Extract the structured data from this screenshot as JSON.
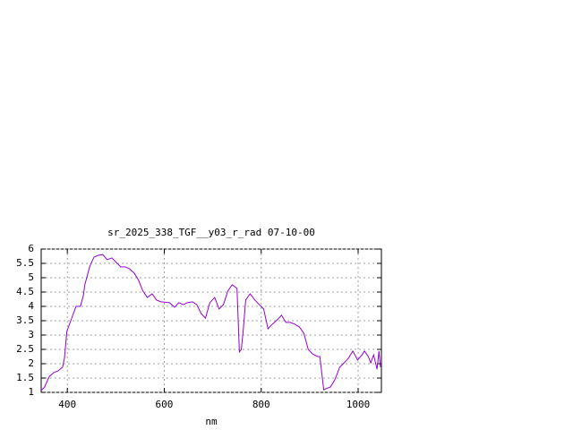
{
  "chart_data": {
    "type": "line",
    "title": "sr_2025_338_TGF__y03_r_rad 07-10-00",
    "x_label": "nm",
    "xlim": [
      346,
      1048
    ],
    "xticks": [
      400,
      600,
      800,
      1000
    ],
    "ylim": [
      1,
      6
    ],
    "yticks": [
      1,
      1.5,
      2,
      2.5,
      3,
      3.5,
      4,
      4.5,
      5,
      5.5,
      6
    ],
    "grid": true,
    "series": [
      {
        "color": "#9400d3",
        "x": [
          346,
          353,
          363,
          372,
          381,
          390,
          394,
          399,
          409,
          418,
          427,
          433,
          436,
          446,
          455,
          464,
          473,
          482,
          492,
          501,
          510,
          519,
          528,
          538,
          547,
          556,
          565,
          575,
          584,
          593,
          611,
          621,
          630,
          639,
          648,
          658,
          667,
          676,
          685,
          694,
          704,
          713,
          722,
          731,
          740,
          750,
          755,
          759,
          763,
          768,
          777,
          787,
          796,
          805,
          814,
          823,
          833,
          842,
          851,
          860,
          869,
          879,
          888,
          897,
          906,
          916,
          921,
          929,
          934,
          943,
          952,
          962,
          971,
          980,
          989,
          999,
          1008,
          1013,
          1021,
          1026,
          1032,
          1035,
          1039,
          1043,
          1046
        ],
        "values": [
          1.06,
          1.19,
          1.56,
          1.69,
          1.75,
          1.88,
          2.19,
          3.13,
          3.59,
          4.0,
          4.0,
          4.38,
          4.75,
          5.38,
          5.72,
          5.78,
          5.81,
          5.63,
          5.69,
          5.53,
          5.38,
          5.38,
          5.31,
          5.16,
          4.91,
          4.53,
          4.31,
          4.44,
          4.22,
          4.16,
          4.13,
          3.97,
          4.13,
          4.06,
          4.13,
          4.16,
          4.06,
          3.75,
          3.59,
          4.13,
          4.31,
          3.91,
          4.06,
          4.53,
          4.75,
          4.63,
          2.41,
          2.5,
          3.19,
          4.22,
          4.44,
          4.22,
          4.06,
          3.91,
          3.22,
          3.38,
          3.53,
          3.69,
          3.44,
          3.44,
          3.38,
          3.28,
          3.06,
          2.5,
          2.34,
          2.25,
          2.25,
          1.09,
          1.13,
          1.19,
          1.44,
          1.88,
          2.03,
          2.19,
          2.44,
          2.13,
          2.31,
          2.44,
          2.25,
          2.03,
          2.31,
          2.09,
          1.81,
          2.44,
          1.88
        ]
      }
    ]
  }
}
